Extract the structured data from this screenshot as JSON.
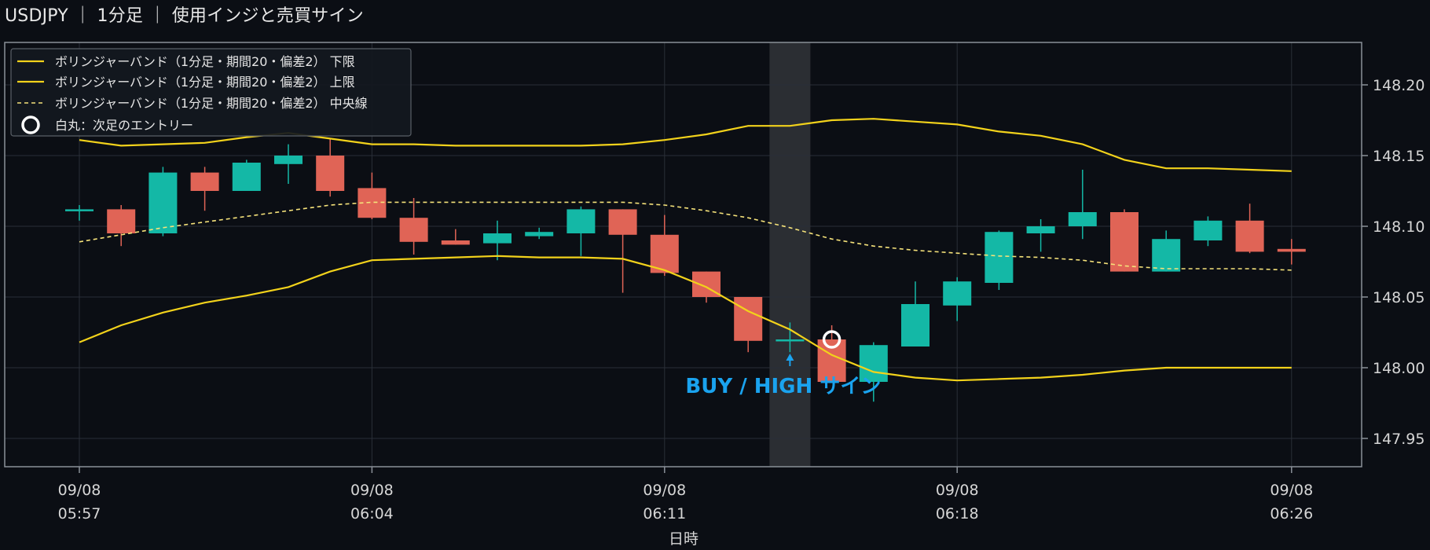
{
  "header": {
    "title": "USDJPY ｜ 1分足 ｜ 使用インジと売買サイン"
  },
  "colors": {
    "background": "#0b0e14",
    "up": "#14b8a6",
    "down": "#e06456",
    "band": "#f2d21b",
    "middle": "#f5e27a",
    "signal": "#1aa3ef",
    "highlight": "#2b2e33",
    "grid": "#2a2f38",
    "frame": "#8a9098"
  },
  "chart_data": {
    "type": "candlestick",
    "symbol": "USDJPY",
    "timeframe": "1分足",
    "xlabel": "日時",
    "ylabel": "",
    "ylim": [
      147.93,
      148.23
    ],
    "yticks": [
      "147.95",
      "148.00",
      "148.05",
      "148.10",
      "148.15",
      "148.20"
    ],
    "xticks": [
      {
        "date": "09/08",
        "time": "05:57"
      },
      {
        "date": "09/08",
        "time": "06:04"
      },
      {
        "date": "09/08",
        "time": "06:11"
      },
      {
        "date": "09/08",
        "time": "06:18"
      },
      {
        "date": "09/08",
        "time": "06:26"
      }
    ],
    "grid": true,
    "legend_position": "top-left",
    "times": [
      "05:57",
      "05:58",
      "05:59",
      "06:00",
      "06:01",
      "06:02",
      "06:03",
      "06:04",
      "06:05",
      "06:06",
      "06:07",
      "06:08",
      "06:09",
      "06:10",
      "06:11",
      "06:12",
      "06:13",
      "06:14",
      "06:15",
      "06:16",
      "06:17",
      "06:18",
      "06:19",
      "06:20",
      "06:21",
      "06:22",
      "06:23",
      "06:24",
      "06:25",
      "06:26"
    ],
    "candles": [
      {
        "o": 148.112,
        "h": 148.115,
        "l": 148.104,
        "c": 148.112
      },
      {
        "o": 148.112,
        "h": 148.115,
        "l": 148.086,
        "c": 148.095
      },
      {
        "o": 148.095,
        "h": 148.142,
        "l": 148.093,
        "c": 148.138
      },
      {
        "o": 148.138,
        "h": 148.142,
        "l": 148.111,
        "c": 148.125
      },
      {
        "o": 148.125,
        "h": 148.147,
        "l": 148.125,
        "c": 148.145
      },
      {
        "o": 148.144,
        "h": 148.158,
        "l": 148.13,
        "c": 148.15
      },
      {
        "o": 148.15,
        "h": 148.162,
        "l": 148.121,
        "c": 148.125
      },
      {
        "o": 148.127,
        "h": 148.138,
        "l": 148.105,
        "c": 148.106
      },
      {
        "o": 148.106,
        "h": 148.12,
        "l": 148.08,
        "c": 148.089
      },
      {
        "o": 148.09,
        "h": 148.098,
        "l": 148.087,
        "c": 148.087
      },
      {
        "o": 148.088,
        "h": 148.104,
        "l": 148.076,
        "c": 148.095
      },
      {
        "o": 148.093,
        "h": 148.099,
        "l": 148.091,
        "c": 148.096
      },
      {
        "o": 148.095,
        "h": 148.114,
        "l": 148.079,
        "c": 148.112
      },
      {
        "o": 148.112,
        "h": 148.112,
        "l": 148.053,
        "c": 148.094
      },
      {
        "o": 148.094,
        "h": 148.108,
        "l": 148.065,
        "c": 148.067
      },
      {
        "o": 148.068,
        "h": 148.068,
        "l": 148.046,
        "c": 148.05
      },
      {
        "o": 148.05,
        "h": 148.05,
        "l": 148.011,
        "c": 148.019
      },
      {
        "o": 148.02,
        "h": 148.032,
        "l": 148.011,
        "c": 148.02
      },
      {
        "o": 148.02,
        "h": 148.03,
        "l": 147.99,
        "c": 147.99
      },
      {
        "o": 147.99,
        "h": 148.018,
        "l": 147.976,
        "c": 148.016
      },
      {
        "o": 148.015,
        "h": 148.061,
        "l": 148.015,
        "c": 148.045
      },
      {
        "o": 148.044,
        "h": 148.064,
        "l": 148.033,
        "c": 148.061
      },
      {
        "o": 148.06,
        "h": 148.097,
        "l": 148.055,
        "c": 148.096
      },
      {
        "o": 148.095,
        "h": 148.105,
        "l": 148.082,
        "c": 148.1
      },
      {
        "o": 148.1,
        "h": 148.14,
        "l": 148.091,
        "c": 148.11
      },
      {
        "o": 148.11,
        "h": 148.112,
        "l": 148.068,
        "c": 148.068
      },
      {
        "o": 148.068,
        "h": 148.097,
        "l": 148.068,
        "c": 148.091
      },
      {
        "o": 148.09,
        "h": 148.107,
        "l": 148.086,
        "c": 148.104
      },
      {
        "o": 148.104,
        "h": 148.116,
        "l": 148.081,
        "c": 148.082
      },
      {
        "o": 148.084,
        "h": 148.091,
        "l": 148.073,
        "c": 148.082
      }
    ],
    "series": [
      {
        "name": "ボリンジャーバンド（1分足・期間20・偏差2） 下限",
        "style": "solid",
        "values": [
          148.018,
          148.03,
          148.039,
          148.046,
          148.051,
          148.057,
          148.068,
          148.076,
          148.077,
          148.078,
          148.079,
          148.078,
          148.078,
          148.077,
          148.069,
          148.057,
          148.04,
          148.027,
          148.009,
          147.997,
          147.993,
          147.991,
          147.992,
          147.993,
          147.995,
          147.998,
          148.0,
          148.0,
          148.0,
          148.0
        ]
      },
      {
        "name": "ボリンジャーバンド（1分足・期間20・偏差2） 上限",
        "style": "solid",
        "values": [
          148.161,
          148.157,
          148.158,
          148.159,
          148.163,
          148.166,
          148.162,
          148.158,
          148.158,
          148.157,
          148.157,
          148.157,
          148.157,
          148.158,
          148.161,
          148.165,
          148.171,
          148.171,
          148.175,
          148.176,
          148.174,
          148.172,
          148.167,
          148.164,
          148.158,
          148.147,
          148.141,
          148.141,
          148.14,
          148.139
        ]
      },
      {
        "name": "ボリンジャーバンド（1分足・期間20・偏差2） 中央線",
        "style": "dashed",
        "values": [
          148.089,
          148.094,
          148.099,
          148.103,
          148.107,
          148.111,
          148.115,
          148.117,
          148.117,
          148.117,
          148.117,
          148.117,
          148.117,
          148.117,
          148.115,
          148.111,
          148.106,
          148.099,
          148.091,
          148.086,
          148.083,
          148.081,
          148.079,
          148.078,
          148.076,
          148.072,
          148.07,
          148.07,
          148.07,
          148.069
        ]
      }
    ],
    "entry_markers": [
      {
        "name": "白丸：次足のエントリー",
        "time": "06:15",
        "price": 148.02
      }
    ],
    "signal": {
      "label": "BUY / HIGH サイン",
      "time": "06:14",
      "highlight_time": "06:14"
    }
  }
}
